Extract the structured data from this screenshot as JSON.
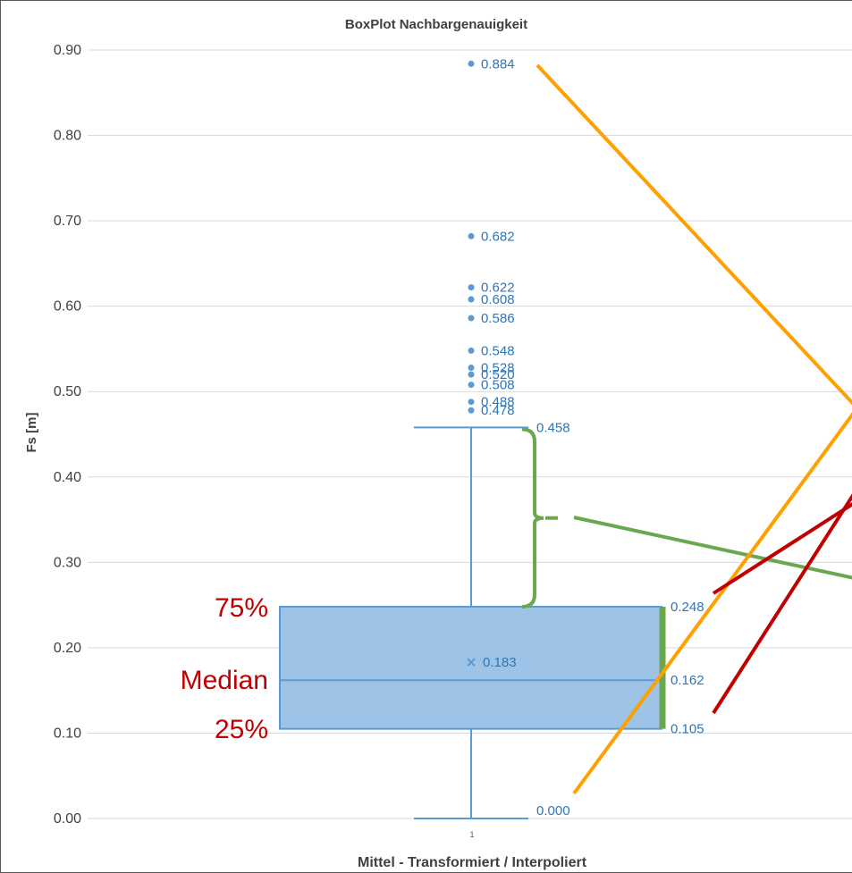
{
  "chart_data": {
    "type": "box",
    "title": "BoxPlot Nachbargenauigkeit",
    "xlabel": "Mittel - Transformiert / Interpoliert",
    "ylabel": "Fs [m]",
    "ylim": [
      0,
      0.9
    ],
    "yticks": [
      "0.00",
      "0.10",
      "0.20",
      "0.30",
      "0.40",
      "0.50",
      "0.60",
      "0.70",
      "0.80",
      "0.90"
    ],
    "categories": [
      "1"
    ],
    "grid": true,
    "box": {
      "min": 0.0,
      "q1": 0.105,
      "median": 0.162,
      "q3": 0.248,
      "whisker_high": 0.458,
      "mean": 0.183,
      "outliers": [
        0.884,
        0.682,
        0.622,
        0.608,
        0.586,
        0.548,
        0.528,
        0.52,
        0.508,
        0.488,
        0.478
      ]
    },
    "labels": {
      "min": "0.000",
      "q1": "0.105",
      "median": "0.162",
      "q3": "0.248",
      "whisker_high": "0.458",
      "mean": "0.183",
      "outliers": [
        "0.884",
        "0.682",
        "0.622",
        "0.608",
        "0.586",
        "0.548",
        "0.528",
        "0.520",
        "0.508",
        "0.488",
        "0.478"
      ]
    },
    "annotations": {
      "q3_label": "75%",
      "median_label": "Median",
      "q1_label": "25%"
    }
  },
  "colors": {
    "box_fill": "#9dc3e6",
    "box_stroke": "#5b9bd5",
    "data_label": "#2e75b6",
    "grid": "#d9d9d9",
    "annotation_text": "#c00000",
    "orange_line": "#ffa000",
    "green_line": "#6aa84f",
    "red_line": "#c00000"
  }
}
